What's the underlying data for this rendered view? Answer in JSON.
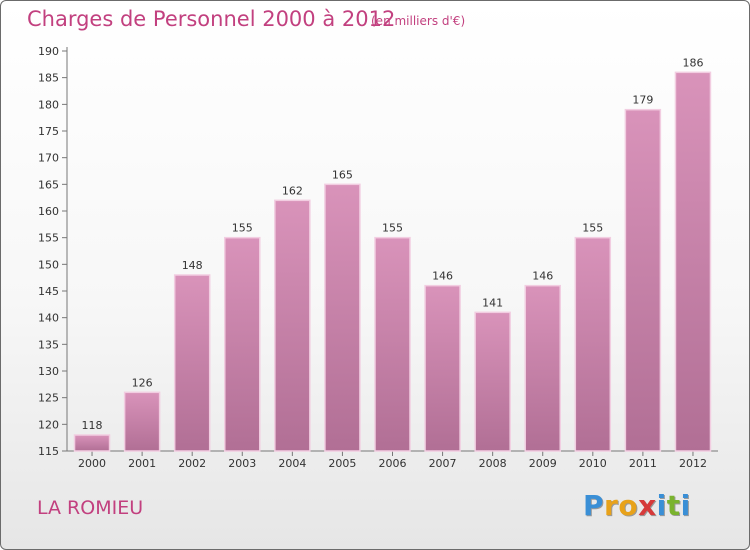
{
  "header": {
    "title": "Charges de Personnel 2000 à 2012",
    "subtitle": "(en milliers d'€)"
  },
  "footer": {
    "commune": "LA ROMIEU",
    "logo_letters": [
      "P",
      "r",
      "o",
      "x",
      "i",
      "t",
      "i"
    ],
    "logo_colors": [
      "#3a8fd6",
      "#e8a21a",
      "#e8a21a",
      "#d63a3a",
      "#3a8fd6",
      "#7ab32e",
      "#3a8fd6"
    ]
  },
  "chart_data": {
    "type": "bar",
    "title": "Charges de Personnel 2000 à 2012",
    "subtitle": "(en milliers d'€)",
    "categories": [
      "2000",
      "2001",
      "2002",
      "2003",
      "2004",
      "2005",
      "2006",
      "2007",
      "2008",
      "2009",
      "2010",
      "2011",
      "2012"
    ],
    "values": [
      118,
      126,
      148,
      155,
      162,
      165,
      155,
      146,
      141,
      146,
      155,
      179,
      186
    ],
    "ylim": [
      115,
      190
    ],
    "ytick_step": 5,
    "grid": false,
    "colors": {
      "bar": "#d993ba",
      "bar_dark": "#b16f95",
      "bar_edge": "#f2cde1"
    }
  }
}
